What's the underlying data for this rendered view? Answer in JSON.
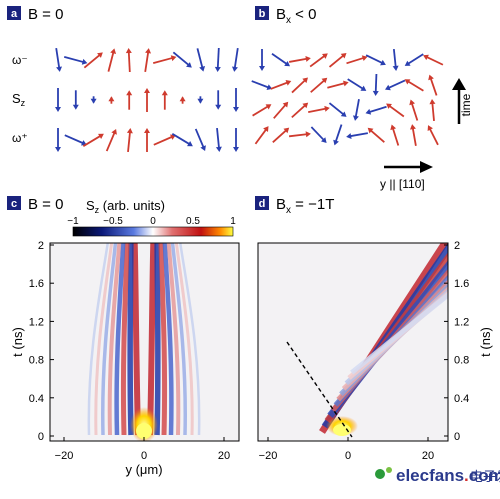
{
  "panels": {
    "a": {
      "letter": "a",
      "title": "B = 0"
    },
    "b": {
      "letter": "b",
      "title": "B",
      "title_sub": "x",
      "title_tail": " < 0"
    },
    "c": {
      "letter": "c",
      "title": "B = 0"
    },
    "d": {
      "letter": "d",
      "title": "B",
      "title_sub": "x",
      "title_tail": " = −1T"
    }
  },
  "row_labels": {
    "omega_minus": "ω⁻",
    "sz": "S",
    "sz_sub": "z",
    "omega_plus": "ω⁺"
  },
  "arrows": {
    "time_label": "time",
    "y_label": "y || [110]"
  },
  "colorbar": {
    "label": "S",
    "label_sub": "z",
    "label_tail": " (arb. units)",
    "ticks": [
      "−1",
      "−0.5",
      "0",
      "0.5",
      "1"
    ]
  },
  "axes": {
    "ylabel": "t (ns)",
    "xlabel_c": "y (μm)",
    "y_ticks": [
      "2",
      "1.6",
      "1.2",
      "0.8",
      "0.4",
      "0"
    ],
    "x_ticks": [
      "−20",
      "0",
      "20"
    ]
  },
  "watermark": {
    "brand": "elecfans",
    "dot": ".",
    "domain": "com",
    "chinese": "电子发烧友"
  },
  "colors": {
    "spin_down": "#2a3fb0",
    "spin_up": "#cf3b2e",
    "accent_dark": "#222222"
  }
}
